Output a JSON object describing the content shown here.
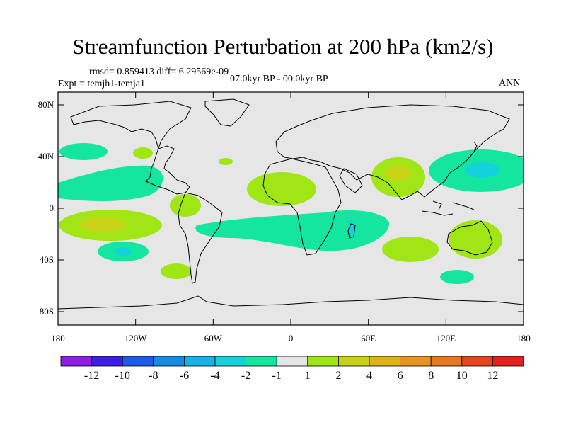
{
  "header": {
    "title": "Streamfunction Perturbation at 200 hPa (km2/s)",
    "rmsd_diff": "rmsd= 0.859413 diff= 6.29569e-09",
    "expt": "Expt = temjh1-temja1",
    "period": "07.0kyr BP - 00.0kyr BP",
    "season": "ANN"
  },
  "map": {
    "y_ticks": [
      "80N",
      "40N",
      "0",
      "40S",
      "80S"
    ],
    "x_ticks": [
      "180",
      "120W",
      "60W",
      "0",
      "60E",
      "120E",
      "180"
    ],
    "background_color": "#e6e6e6"
  },
  "colorbar": {
    "colors": [
      "#8c1ee6",
      "#3c1ee6",
      "#1e5ae6",
      "#148ce6",
      "#14b4e6",
      "#14d2dc",
      "#14e6a0",
      "#e6e6e6",
      "#a0e614",
      "#c8d214",
      "#dcb414",
      "#e6961e",
      "#e6781e",
      "#e6461e",
      "#e61e1e"
    ],
    "labels": [
      "-12",
      "-10",
      "-8",
      "-6",
      "-4",
      "-2",
      "-1",
      "1",
      "2",
      "4",
      "6",
      "8",
      "10",
      "12"
    ]
  }
}
